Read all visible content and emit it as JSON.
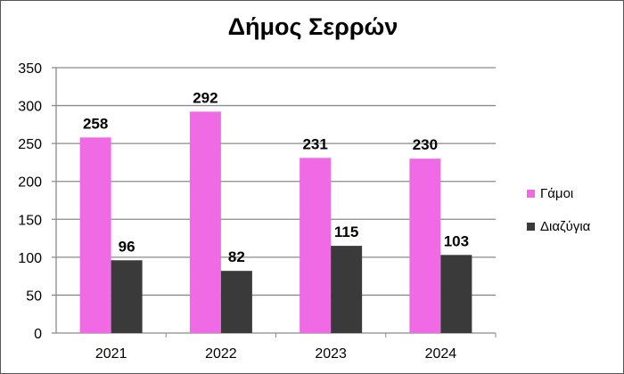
{
  "chart_data": {
    "type": "bar",
    "title": "Δήμος Σερρών",
    "categories": [
      "2021",
      "2022",
      "2023",
      "2024"
    ],
    "series": [
      {
        "name": "Γάμοι",
        "values": [
          258,
          292,
          231,
          230
        ],
        "color": "#f06ae6"
      },
      {
        "name": "Διαζύγια",
        "values": [
          96,
          82,
          115,
          103
        ],
        "color": "#3a3a3a"
      }
    ],
    "xlabel": "",
    "ylabel": "",
    "ylim": [
      0,
      350
    ],
    "yticks": [
      0,
      50,
      100,
      150,
      200,
      250,
      300,
      350
    ],
    "grid": true,
    "legend": "right",
    "data_labels": true
  }
}
